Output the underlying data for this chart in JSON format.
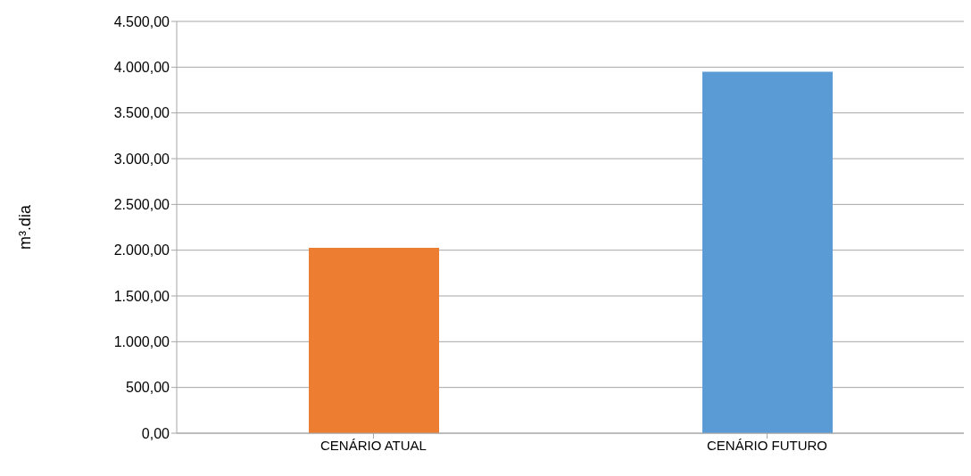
{
  "chart_data": {
    "type": "bar",
    "ylabel": "m³.dia",
    "categories": [
      "CENÁRIO ATUAL",
      "CENÁRIO FUTURO"
    ],
    "values": [
      2025,
      3950
    ],
    "colors": [
      "#ed7d31",
      "#5b9bd5"
    ],
    "ylim": [
      0,
      4500
    ],
    "yticks": [
      {
        "value": 0,
        "label": "0,00"
      },
      {
        "value": 500,
        "label": "500,00"
      },
      {
        "value": 1000,
        "label": "1.000,00"
      },
      {
        "value": 1500,
        "label": "1.500,00"
      },
      {
        "value": 2000,
        "label": "2.000,00"
      },
      {
        "value": 2500,
        "label": "2.500,00"
      },
      {
        "value": 3000,
        "label": "3.000,00"
      },
      {
        "value": 3500,
        "label": "3.500,00"
      },
      {
        "value": 4000,
        "label": "4.000,00"
      },
      {
        "value": 4500,
        "label": "4.500,00"
      }
    ],
    "grid": "y"
  }
}
